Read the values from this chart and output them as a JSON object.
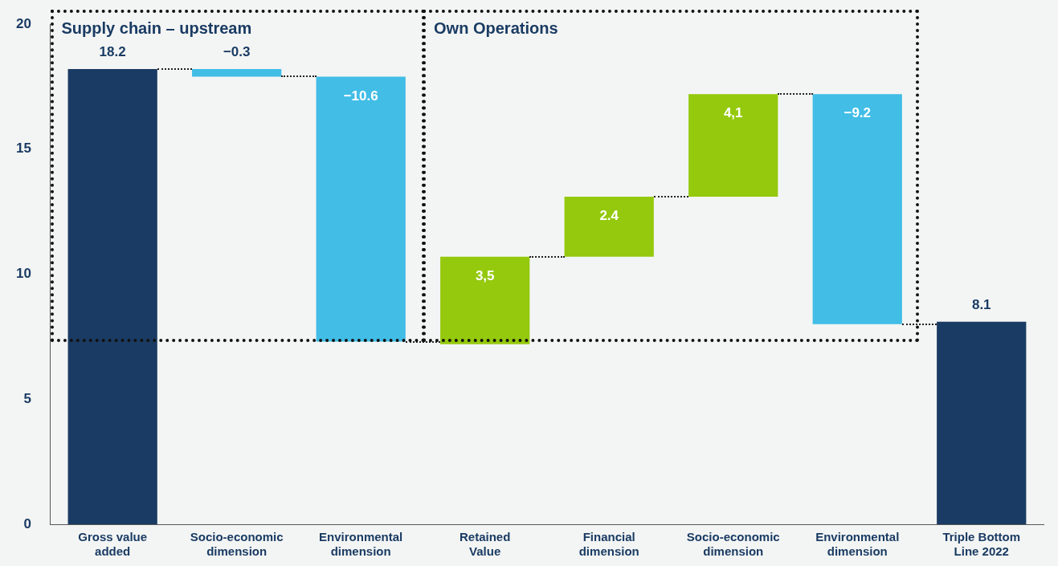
{
  "chart_data": {
    "type": "bar",
    "categories": [
      "Gross value added",
      "Socio-economic dimension",
      "Environmental dimension",
      "Retained Value",
      "Financial dimension",
      "Socio-economic dimension",
      "Environmental dimension",
      "Triple Bottom Line 2022"
    ],
    "values": [
      18.2,
      -0.3,
      -10.6,
      3.5,
      2.4,
      4.1,
      -9.2,
      8.1
    ],
    "base": [
      0,
      18.2,
      17.9,
      7.2,
      10.7,
      13.1,
      17.2,
      0
    ],
    "colors": [
      "#1a3b63",
      "#41bde6",
      "#41bde6",
      "#94c90d",
      "#94c90d",
      "#94c90d",
      "#41bde6",
      "#1a3b63"
    ],
    "value_labels": [
      "18.2",
      "−0.3",
      "−10.6",
      "3,5",
      "2.4",
      "4,1",
      "−9.2",
      "8.1"
    ],
    "ylim": [
      0,
      20
    ],
    "yticks": [
      0,
      5,
      10,
      15,
      20
    ],
    "grid": false,
    "legend": false,
    "annotations": [
      "Supply chain – upstream",
      "Own Operations"
    ]
  }
}
